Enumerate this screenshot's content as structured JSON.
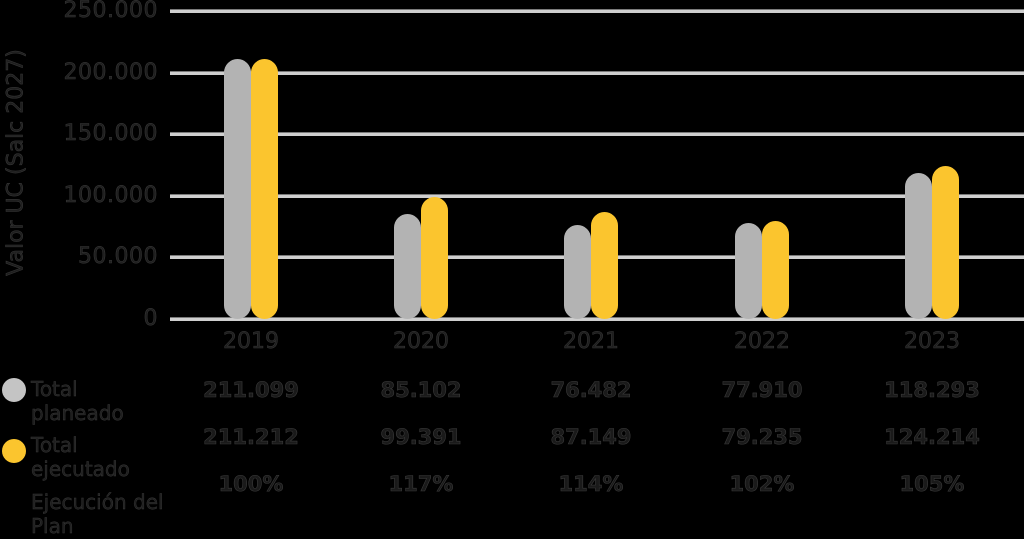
{
  "chart_data": {
    "type": "bar",
    "title": "",
    "xlabel": "",
    "ylabel": "Valor UC (Salc 2027)",
    "ylim": [
      0,
      250000
    ],
    "yticks": [
      "0",
      "50.000",
      "100.000",
      "150.000",
      "200.000",
      "250.000"
    ],
    "grid": true,
    "legend_position": "bottom-left",
    "categories": [
      "2019",
      "2020",
      "2021",
      "2022",
      "2023"
    ],
    "series": [
      {
        "name": "Total planeado",
        "color": "#b3b3b3",
        "values": [
          211099,
          85102,
          76482,
          77910,
          118293
        ]
      },
      {
        "name": "Total ejecutado",
        "color": "#fbc52e",
        "values": [
          211212,
          99391,
          87149,
          79235,
          124214
        ]
      }
    ],
    "table": {
      "rows": [
        {
          "label": "Total planeado",
          "values": [
            "211.099",
            "85.102",
            "76.482",
            "77.910",
            "118.293"
          ]
        },
        {
          "label": "Total ejecutado",
          "values": [
            "211.212",
            "99.391",
            "87.149",
            "79.235",
            "124.214"
          ]
        },
        {
          "label": "Ejecución del Plan",
          "values": [
            "100%",
            "117%",
            "114%",
            "102%",
            "105%"
          ]
        }
      ]
    }
  },
  "legend": {
    "planeado": "Total planeado",
    "ejecutado": "Total ejecutado",
    "ejecucion": "Ejecución del Plan"
  }
}
